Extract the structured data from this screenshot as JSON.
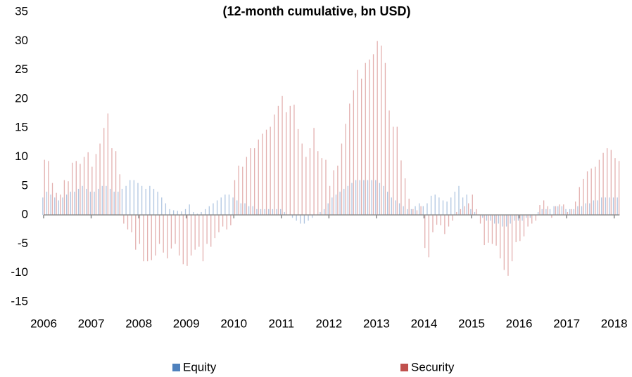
{
  "chart_data": {
    "type": "bar",
    "title": "(12-month cumulative, bn USD)",
    "categories": [
      "2006",
      null,
      null,
      null,
      null,
      null,
      null,
      null,
      null,
      null,
      null,
      null,
      "2007",
      null,
      null,
      null,
      null,
      null,
      null,
      null,
      null,
      null,
      null,
      null,
      "2008",
      null,
      null,
      null,
      null,
      null,
      null,
      null,
      null,
      null,
      null,
      null,
      "2009",
      null,
      null,
      null,
      null,
      null,
      null,
      null,
      null,
      null,
      null,
      null,
      "2010",
      null,
      null,
      null,
      null,
      null,
      null,
      null,
      null,
      null,
      null,
      null,
      "2011",
      null,
      null,
      null,
      null,
      null,
      null,
      null,
      null,
      null,
      null,
      null,
      "2012",
      null,
      null,
      null,
      null,
      null,
      null,
      null,
      null,
      null,
      null,
      null,
      "2013",
      null,
      null,
      null,
      null,
      null,
      null,
      null,
      null,
      null,
      null,
      null,
      "2014",
      null,
      null,
      null,
      null,
      null,
      null,
      null,
      null,
      null,
      null,
      null,
      "2015",
      null,
      null,
      null,
      null,
      null,
      null,
      null,
      null,
      null,
      null,
      null,
      "2016",
      null,
      null,
      null,
      null,
      null,
      null,
      null,
      null,
      null,
      null,
      null,
      "2017",
      null,
      null,
      null,
      null,
      null,
      null,
      null,
      null,
      null,
      null,
      null,
      "2018",
      null
    ],
    "series": [
      {
        "name": "Equity",
        "color": "#4f81bd",
        "values": [
          3,
          4,
          3.5,
          3,
          2.5,
          3,
          3.5,
          4,
          4,
          4.5,
          5,
          4.5,
          4,
          4,
          4.5,
          5,
          5,
          4.5,
          4,
          4,
          4.5,
          5,
          6,
          6,
          5.5,
          5,
          4.5,
          5,
          4.5,
          4,
          3,
          2,
          1,
          0.8,
          0.7,
          0.6,
          1,
          1.8,
          0.5,
          0.2,
          0.5,
          1,
          1.5,
          2,
          2.5,
          3,
          3.5,
          3.5,
          3,
          2.5,
          2,
          2,
          1.5,
          1.5,
          1,
          1,
          1,
          1,
          1,
          1,
          1,
          0.5,
          0,
          -0.5,
          -1,
          -1.5,
          -1.5,
          -1,
          -0.5,
          0,
          0.5,
          1,
          2,
          3,
          3.5,
          4,
          4.5,
          5,
          5.5,
          6,
          6,
          6,
          6,
          6,
          6,
          5.5,
          5,
          4,
          3,
          2.5,
          2,
          1.5,
          1,
          1,
          1.5,
          2,
          1.5,
          2,
          3.3,
          3.5,
          3,
          2.5,
          2.3,
          3,
          4,
          5,
          3,
          3.5,
          1,
          0.5,
          0,
          -0.5,
          -1,
          -1,
          -1.5,
          -1.5,
          -2,
          -2,
          -1.5,
          -1,
          -1,
          -1,
          -0.5,
          -0.5,
          0,
          0.5,
          1,
          1,
          1,
          1.5,
          1.5,
          1.5,
          1,
          1,
          1,
          1.5,
          1.5,
          2,
          2,
          2.5,
          2.5,
          3,
          3,
          3,
          3,
          3
        ]
      },
      {
        "name": "Security",
        "color": "#c0504d",
        "values": [
          9.5,
          9.3,
          5.5,
          3.8,
          3.5,
          6,
          5.8,
          9,
          9.3,
          8.8,
          10,
          10.8,
          8.3,
          10.5,
          12.3,
          15,
          17.5,
          11.5,
          11,
          7,
          -1.5,
          -2.5,
          -3,
          -6,
          -5,
          -8,
          -8,
          -7.8,
          -7,
          -5,
          -6.5,
          -7.5,
          -5.8,
          -5,
          -7,
          -8.5,
          -8.8,
          -7,
          -6,
          -5.5,
          -8,
          -5,
          -5.5,
          -4,
          -3,
          -2,
          -2.5,
          -1.8,
          6,
          8.5,
          8.3,
          10,
          11.5,
          11.5,
          13,
          14,
          14.7,
          15.2,
          17.3,
          18.8,
          20.5,
          17.7,
          18.8,
          19,
          14.8,
          12.3,
          10,
          11.5,
          15,
          11,
          9.8,
          9.5,
          5,
          7.7,
          8.5,
          12.3,
          15.7,
          19.2,
          21.5,
          25,
          23.5,
          26.2,
          26.8,
          27.7,
          30,
          29.2,
          26.2,
          18,
          15.2,
          15.2,
          9.4,
          6.3,
          2.8,
          1,
          0.8,
          1.5,
          -5.7,
          -7.3,
          -3,
          -1.7,
          -1.8,
          -3.3,
          -2,
          -1,
          0.5,
          1,
          1.5,
          2,
          3.5,
          1,
          -1.5,
          -5.2,
          -4.8,
          -5,
          -5.3,
          -7.5,
          -9.5,
          -10.5,
          -8,
          -4.7,
          -4.5,
          -3.7,
          -2,
          -1.5,
          -1,
          1.7,
          2.5,
          1.5,
          -0.5,
          1.5,
          1.8,
          1.8,
          0.5,
          1,
          2.3,
          4.8,
          6.2,
          7.5,
          8,
          8.3,
          9.5,
          10.7,
          11.5,
          11.2,
          9.8,
          9.3
        ]
      }
    ],
    "ylim": [
      -15,
      35
    ],
    "yticks": [
      -15,
      -10,
      -5,
      0,
      5,
      10,
      15,
      20,
      25,
      30,
      35
    ],
    "legend": "bottom"
  }
}
